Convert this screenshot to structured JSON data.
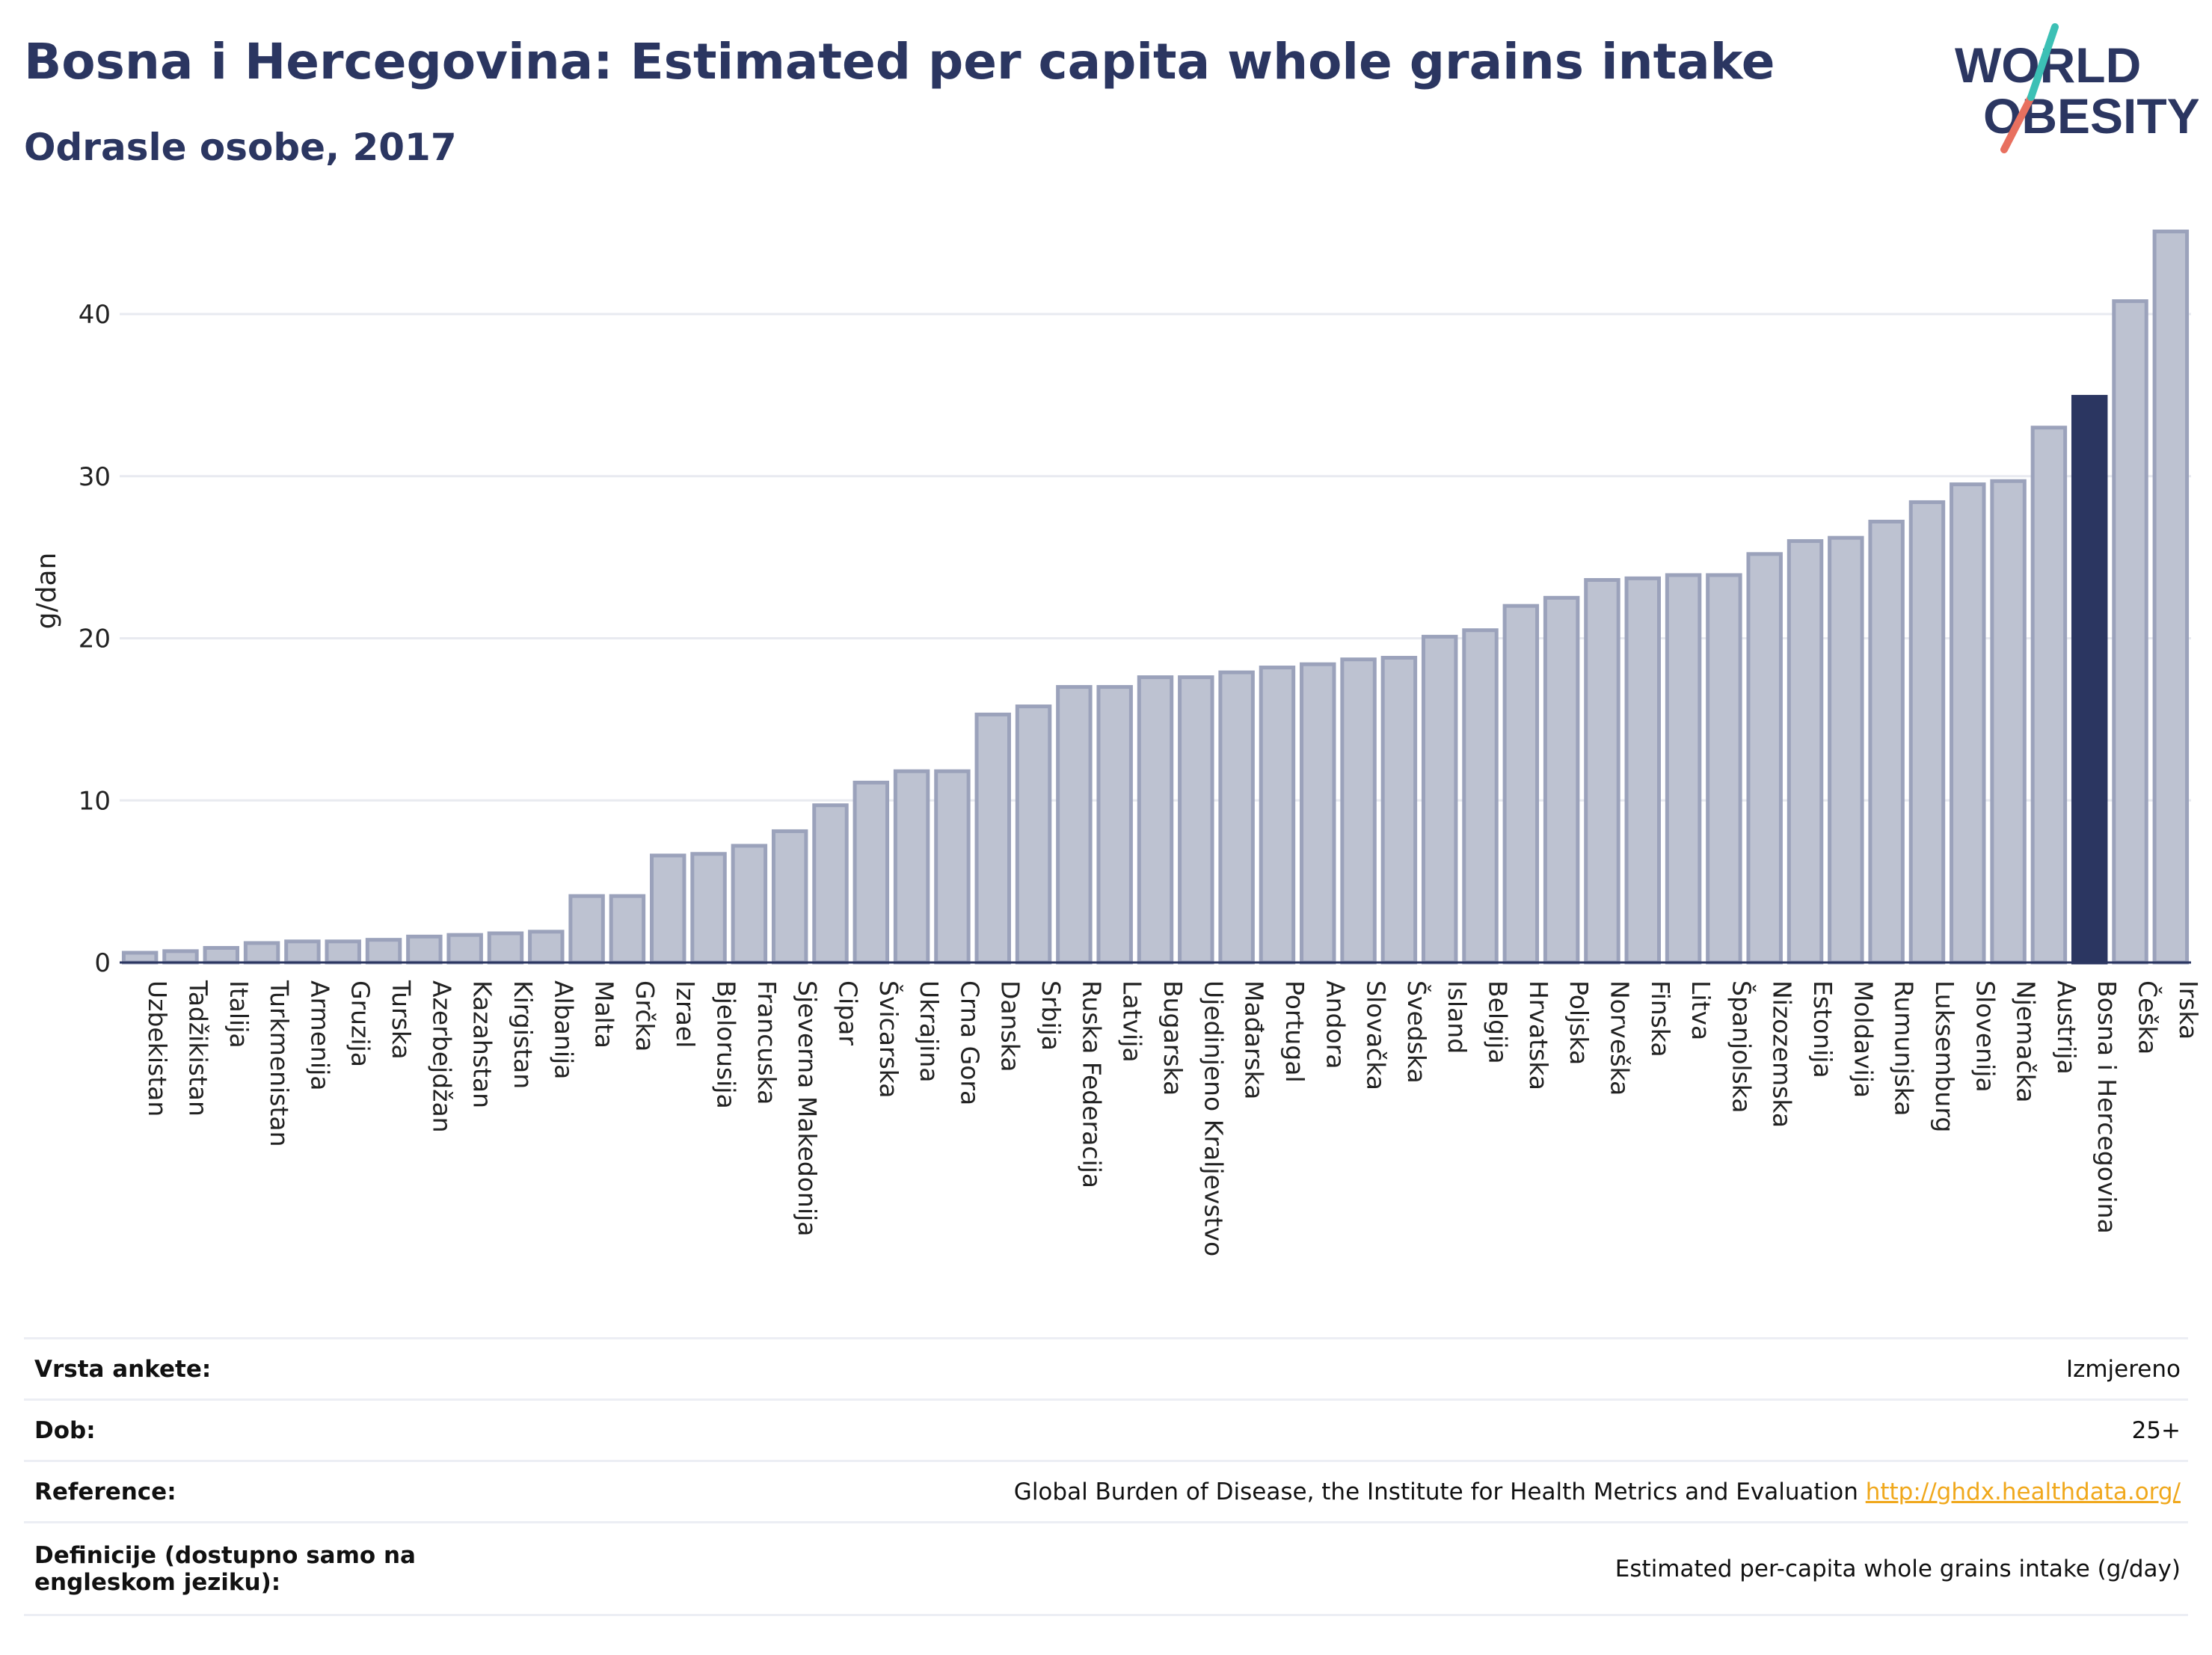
{
  "header": {
    "title": "Bosna i Hercegovina: Estimated per capita whole grains intake",
    "subtitle": "Odrasle osobe, 2017"
  },
  "logo": {
    "line1": "WORLD",
    "line2": "OBESITY",
    "accent_colors": [
      "#3cc0b5",
      "#e8705f"
    ]
  },
  "chart_data": {
    "type": "bar",
    "ylabel": "g/dan",
    "ylim": [
      0,
      46
    ],
    "yticks": [
      0,
      10,
      20,
      30,
      40
    ],
    "grid": true,
    "highlight": "Bosna i Hercegovina",
    "colors": {
      "bar": "#bdc2d1",
      "bar_border": "#9ba2bb",
      "highlight": "#2b3661"
    },
    "categories": [
      "Uzbekistan",
      "Tadžikistan",
      "Italija",
      "Turkmenistan",
      "Armenija",
      "Gruzija",
      "Turska",
      "Azerbejdžan",
      "Kazahstan",
      "Kirgistan",
      "Albanija",
      "Malta",
      "Grčka",
      "Izrael",
      "Bjelorusija",
      "Francuska",
      "Sjeverna Makedonija",
      "Cipar",
      "Švicarska",
      "Ukrajina",
      "Crna Gora",
      "Danska",
      "Srbija",
      "Ruska Federacija",
      "Latvija",
      "Bugarska",
      "Ujedinjeno Kraljevstvo",
      "Mađarska",
      "Portugal",
      "Andora",
      "Slovačka",
      "Švedska",
      "Island",
      "Belgija",
      "Hrvatska",
      "Poljska",
      "Norveška",
      "Finska",
      "Litva",
      "Španjolska",
      "Nizozemska",
      "Estonija",
      "Moldavija",
      "Rumunjska",
      "Luksemburg",
      "Slovenija",
      "Njemačka",
      "Austrija",
      "Bosna i Hercegovina",
      "Češka",
      "Irska"
    ],
    "values": [
      0.6,
      0.7,
      0.9,
      1.2,
      1.3,
      1.3,
      1.4,
      1.6,
      1.7,
      1.8,
      1.9,
      4.1,
      4.1,
      6.6,
      6.7,
      7.2,
      8.1,
      9.7,
      11.1,
      11.8,
      11.8,
      15.3,
      15.8,
      17.0,
      17.0,
      17.6,
      17.6,
      17.9,
      18.2,
      18.4,
      18.7,
      18.8,
      20.1,
      20.5,
      22.0,
      22.5,
      23.6,
      23.7,
      23.9,
      23.9,
      25.2,
      26.0,
      26.2,
      27.2,
      28.4,
      29.5,
      29.7,
      33.0,
      34.9,
      40.8,
      45.1
    ]
  },
  "info_table": [
    {
      "key": "Vrsta ankete:",
      "value": "Izmjereno"
    },
    {
      "key": "Dob:",
      "value": "25+"
    },
    {
      "key": "Reference:",
      "value": "Global Burden of Disease, the Institute for Health Metrics and Evaluation",
      "link": "http://ghdx.healthdata.org/"
    },
    {
      "key": "Definicije (dostupno samo na engleskom jeziku):",
      "value": "Estimated per-capita whole grains intake (g/day)"
    }
  ]
}
